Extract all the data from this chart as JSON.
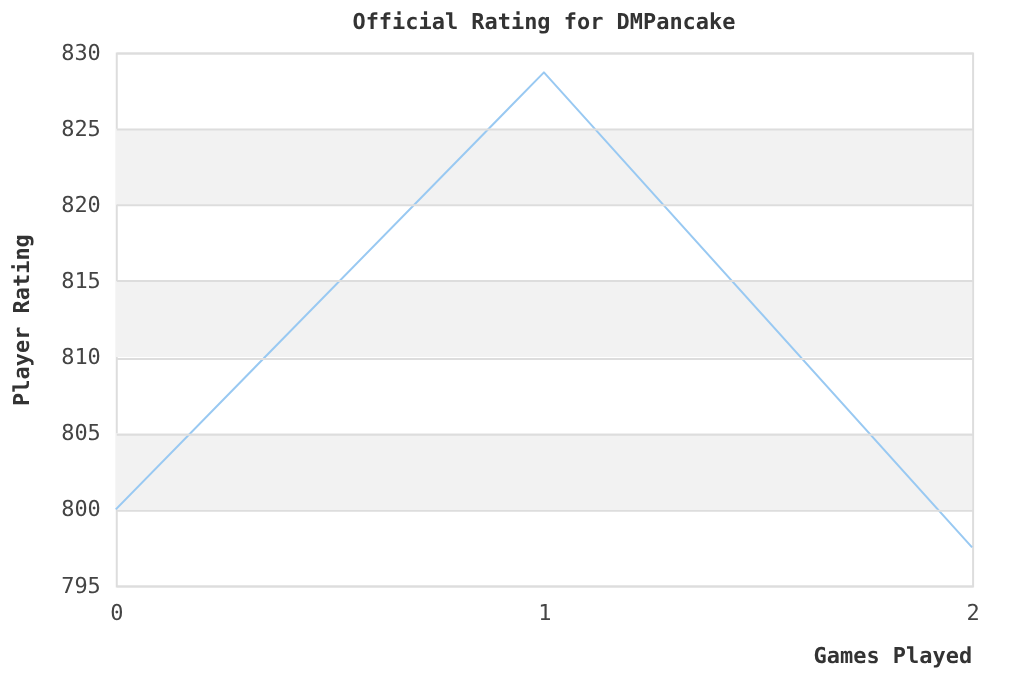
{
  "chart_data": {
    "type": "line",
    "title": "Official Rating for DMPancake",
    "xlabel": "Games Played",
    "ylabel": "Player Rating",
    "x": [
      0,
      1,
      2
    ],
    "series": [
      {
        "color": "#99c9f2",
        "values": [
          800,
          828.7,
          797.5
        ]
      }
    ],
    "xlim": [
      0,
      2
    ],
    "xticks": [
      0,
      1,
      2
    ],
    "ylim": [
      795,
      830
    ],
    "yticks": [
      795,
      800,
      805,
      810,
      815,
      820,
      825,
      830
    ],
    "bands": [
      {
        "axis": "y",
        "from": 800,
        "to": 805,
        "color": "#f2f2f2"
      },
      {
        "axis": "y",
        "from": 810,
        "to": 815,
        "color": "#f2f2f2"
      },
      {
        "axis": "y",
        "from": 820,
        "to": 825,
        "color": "#f2f2f2"
      }
    ],
    "grid": "y",
    "marker": "none",
    "line_style": "solid"
  }
}
